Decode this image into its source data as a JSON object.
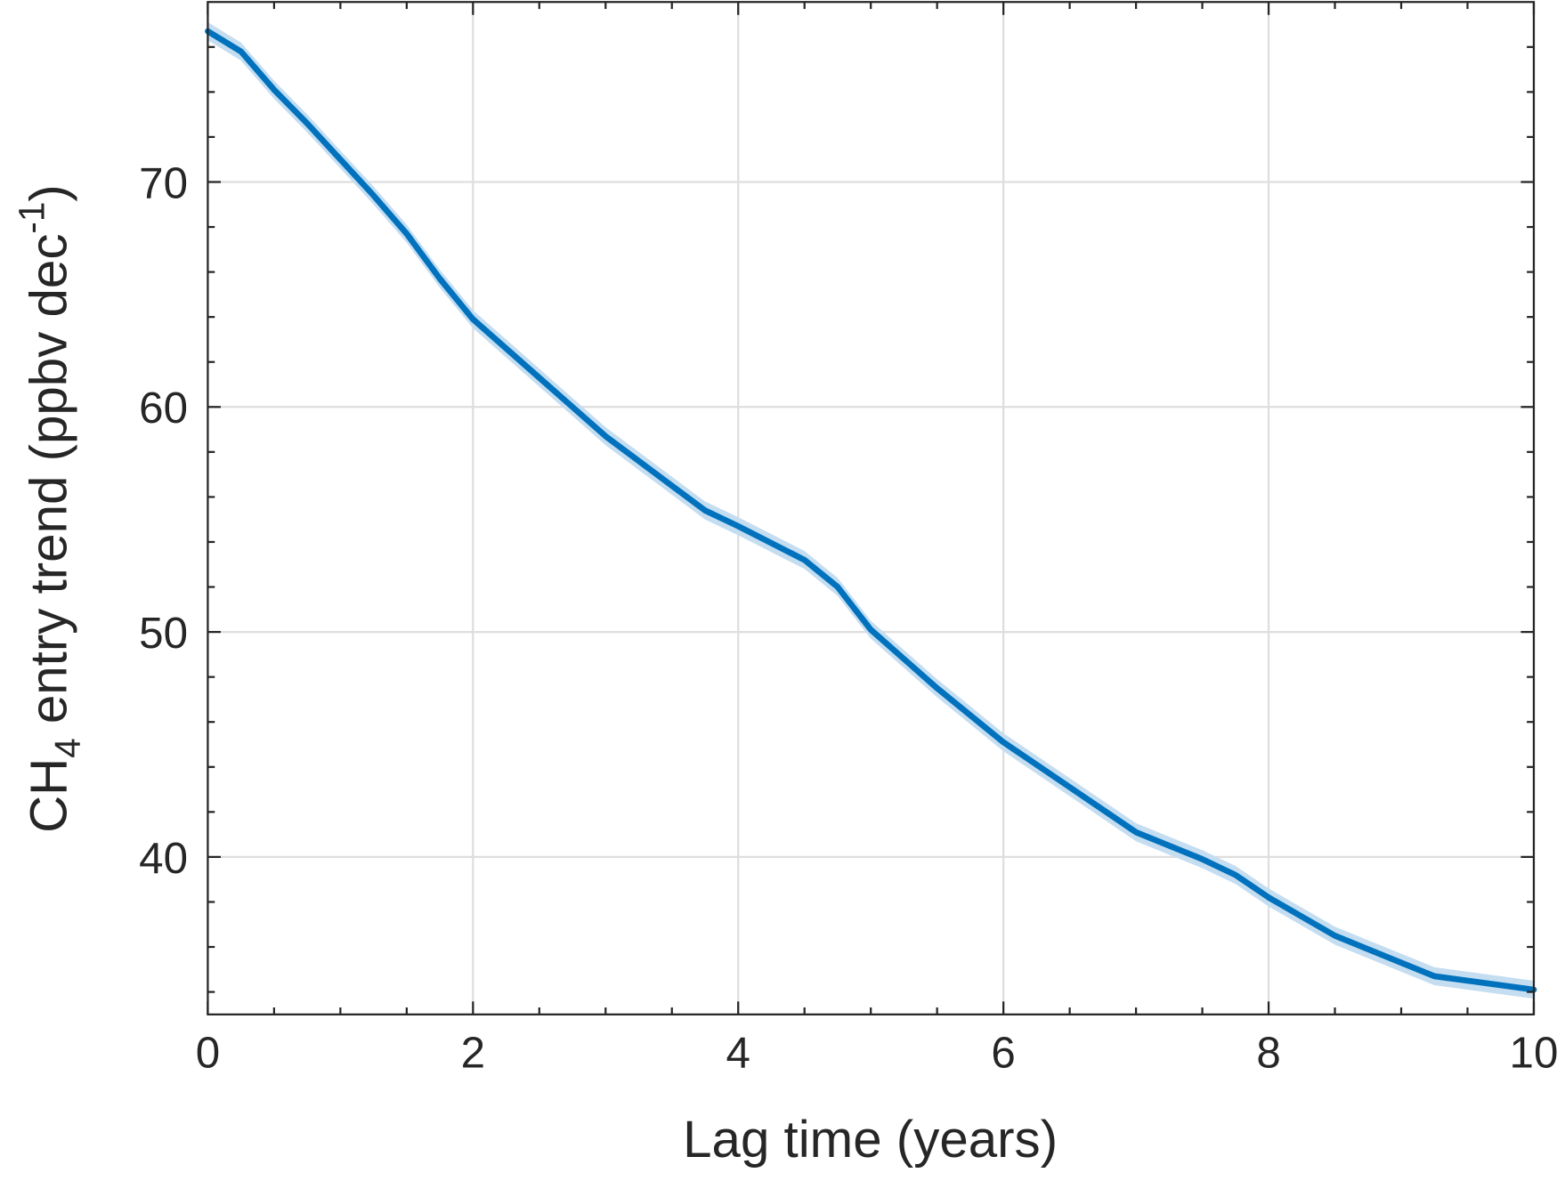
{
  "chart_data": {
    "type": "line",
    "xlabel": "Lag time (years)",
    "ylabel": [
      "CH",
      "4",
      " entry trend (ppbv dec",
      "-1",
      ")"
    ],
    "x": [
      0,
      0.25,
      0.5,
      0.75,
      1,
      1.25,
      1.5,
      1.75,
      2,
      2.5,
      3,
      3.5,
      3.75,
      4,
      4.5,
      4.75,
      5,
      5.5,
      6,
      6.5,
      7,
      7.5,
      7.75,
      8,
      8.5,
      9,
      9.25,
      9.5,
      10
    ],
    "series": [
      {
        "color": "#0072bd",
        "band_color": "#c4ddf1",
        "values": [
          76.7,
          75.8,
          74.1,
          72.6,
          71.0,
          69.4,
          67.7,
          65.7,
          63.9,
          61.3,
          58.7,
          56.5,
          55.4,
          54.7,
          53.2,
          52.0,
          50.1,
          47.5,
          45.1,
          43.1,
          41.1,
          39.9,
          39.2,
          38.2,
          36.5,
          35.3,
          34.7,
          34.5,
          34.1
        ],
        "lower": [
          76.3,
          75.4,
          73.7,
          72.2,
          70.6,
          69.0,
          67.3,
          65.3,
          63.5,
          60.9,
          58.3,
          56.1,
          55.0,
          54.3,
          52.8,
          51.6,
          49.7,
          47.1,
          44.7,
          42.7,
          40.7,
          39.5,
          38.8,
          37.8,
          36.1,
          34.9,
          34.3,
          34.1,
          33.7
        ],
        "upper": [
          77.1,
          76.2,
          74.5,
          73.0,
          71.4,
          69.8,
          68.1,
          66.1,
          64.3,
          61.7,
          59.1,
          56.9,
          55.8,
          55.1,
          53.6,
          52.4,
          50.5,
          47.9,
          45.5,
          43.5,
          41.5,
          40.3,
          39.6,
          38.6,
          36.9,
          35.7,
          35.1,
          34.9,
          34.5
        ]
      }
    ],
    "xlim": [
      0,
      10
    ],
    "xticks": [
      0,
      2,
      4,
      6,
      8,
      10
    ],
    "xminorticks": [
      0.5,
      1,
      1.5,
      2.5,
      3,
      3.5,
      4.5,
      5,
      5.5,
      6.5,
      7,
      7.5,
      8.5,
      9,
      9.5
    ],
    "ylim": [
      33,
      78
    ],
    "yticks": [
      40,
      50,
      60,
      70
    ],
    "yminorticks": [
      34,
      36,
      38,
      42,
      44,
      46,
      48,
      52,
      54,
      56,
      58,
      62,
      64,
      66,
      68,
      72,
      74,
      76
    ],
    "grid": true
  }
}
